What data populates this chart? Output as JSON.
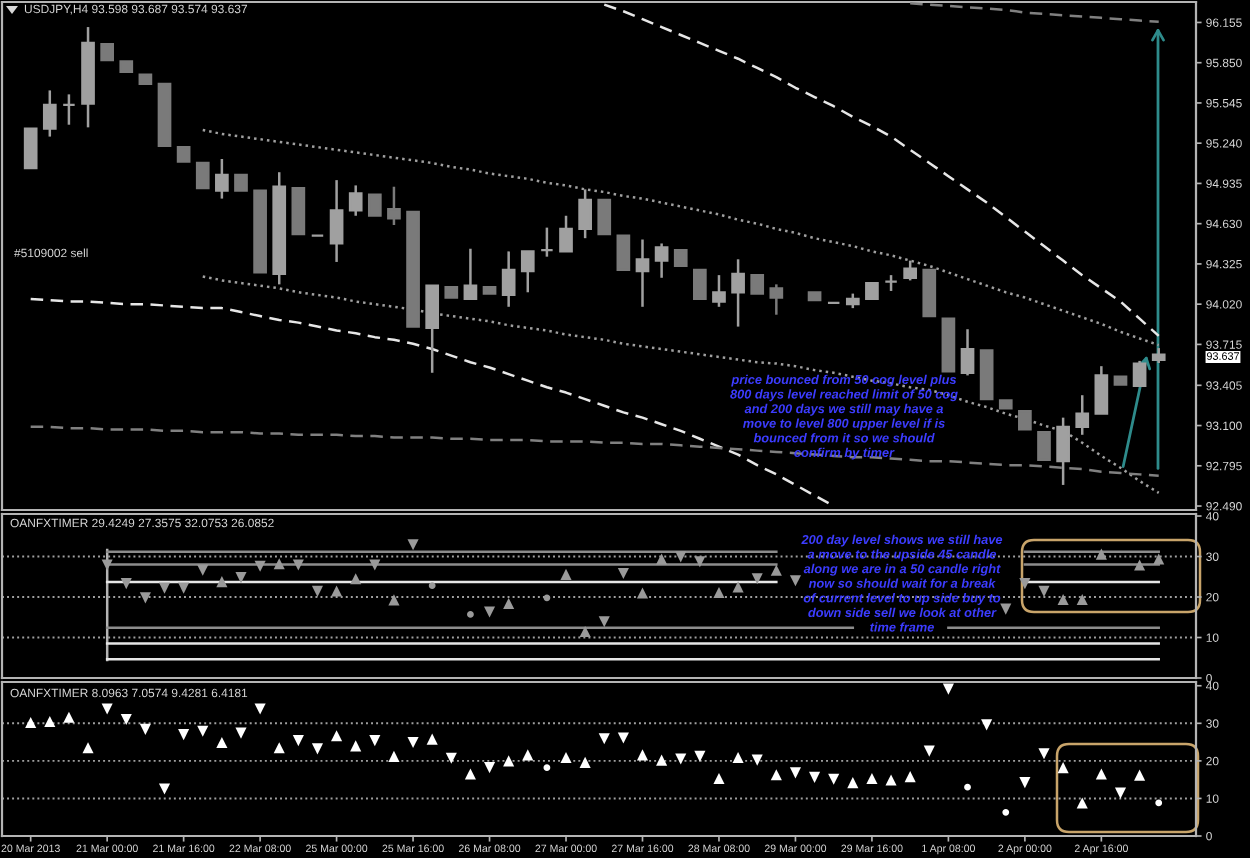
{
  "chart_data": [
    {
      "type": "candlestick",
      "title": "USDJPY,H4 93.598 93.687 93.574 93.637",
      "categories": [
        null,
        null,
        null,
        null,
        null,
        null,
        null,
        null,
        null,
        null,
        null,
        null,
        null,
        null,
        null,
        null,
        null,
        null,
        null,
        null,
        null,
        null,
        null,
        null,
        null,
        null,
        null,
        null,
        null,
        null,
        null,
        null,
        null,
        null,
        null,
        null,
        null,
        null,
        null,
        null,
        null,
        null,
        null,
        null,
        null,
        null,
        null,
        null,
        null,
        null,
        null,
        null,
        null,
        null,
        null,
        null,
        null,
        null,
        null,
        null
      ],
      "ohlc": [
        [
          95.05,
          95.35,
          95.05,
          95.35
        ],
        [
          95.35,
          95.64,
          95.29,
          95.53
        ],
        [
          95.53,
          95.61,
          95.38,
          95.53
        ],
        [
          95.54,
          96.12,
          95.36,
          96.0
        ],
        [
          95.99,
          95.99,
          95.87,
          95.87
        ],
        [
          95.86,
          95.86,
          95.78,
          95.78
        ],
        [
          95.76,
          95.76,
          95.69,
          95.69
        ],
        [
          95.69,
          95.69,
          95.22,
          95.22
        ],
        [
          95.21,
          95.21,
          95.1,
          95.1
        ],
        [
          95.09,
          95.09,
          94.9,
          94.9
        ],
        [
          94.88,
          95.12,
          94.82,
          95.0
        ],
        [
          95.0,
          95.0,
          94.88,
          94.88
        ],
        [
          94.88,
          94.88,
          94.26,
          94.26
        ],
        [
          94.25,
          95.02,
          94.17,
          94.91
        ],
        [
          94.9,
          94.9,
          94.55,
          94.55
        ],
        [
          94.54,
          94.54,
          94.54,
          94.54
        ],
        [
          94.48,
          94.96,
          94.34,
          94.73
        ],
        [
          94.73,
          94.92,
          94.69,
          94.86
        ],
        [
          94.85,
          94.85,
          94.69,
          94.69
        ],
        [
          94.74,
          94.91,
          94.62,
          94.67
        ],
        [
          94.72,
          94.72,
          93.85,
          93.85
        ],
        [
          93.84,
          94.16,
          93.5,
          94.16
        ],
        [
          94.15,
          94.15,
          94.07,
          94.07
        ],
        [
          94.06,
          94.44,
          94.06,
          94.16
        ],
        [
          94.15,
          94.15,
          94.1,
          94.1
        ],
        [
          94.09,
          94.42,
          94.0,
          94.28
        ],
        [
          94.27,
          94.42,
          94.11,
          94.42
        ],
        [
          94.43,
          94.6,
          94.38,
          94.43
        ],
        [
          94.42,
          94.69,
          94.42,
          94.59
        ],
        [
          94.59,
          94.89,
          94.52,
          94.81
        ],
        [
          94.81,
          94.81,
          94.55,
          94.55
        ],
        [
          94.54,
          94.54,
          94.28,
          94.28
        ],
        [
          94.27,
          94.51,
          94.0,
          94.36
        ],
        [
          94.35,
          94.48,
          94.22,
          94.45
        ],
        [
          94.43,
          94.43,
          94.31,
          94.31
        ],
        [
          94.28,
          94.28,
          94.06,
          94.06
        ],
        [
          94.04,
          94.24,
          94.0,
          94.11
        ],
        [
          94.11,
          94.36,
          93.85,
          94.25
        ],
        [
          94.24,
          94.24,
          94.1,
          94.1
        ],
        [
          94.14,
          94.17,
          93.94,
          94.07
        ],
        null,
        [
          94.11,
          94.11,
          94.05,
          94.05
        ],
        [
          94.03,
          94.03,
          94.03,
          94.03
        ],
        [
          94.02,
          94.1,
          93.99,
          94.06
        ],
        [
          94.06,
          94.18,
          94.06,
          94.18
        ],
        [
          94.19,
          94.24,
          94.12,
          94.19
        ],
        [
          94.22,
          94.35,
          94.2,
          94.29
        ],
        [
          94.28,
          94.28,
          93.93,
          93.93
        ],
        [
          93.91,
          93.91,
          93.51,
          93.51
        ],
        [
          93.5,
          93.83,
          93.48,
          93.68
        ],
        [
          93.67,
          93.67,
          93.3,
          93.3
        ],
        [
          93.29,
          93.29,
          93.23,
          93.23
        ],
        [
          93.21,
          93.21,
          93.07,
          93.07
        ],
        [
          93.05,
          93.05,
          92.84,
          92.84
        ],
        [
          92.83,
          93.16,
          92.65,
          93.09
        ],
        [
          93.09,
          93.33,
          93.03,
          93.19
        ],
        [
          93.19,
          93.55,
          93.19,
          93.48
        ],
        [
          93.47,
          93.47,
          93.41,
          93.41
        ],
        [
          93.4,
          93.59,
          93.4,
          93.57
        ],
        [
          93.598,
          93.687,
          93.574,
          93.637
        ]
      ],
      "colors": [
        "#a0a0a0",
        "#a0a0a0",
        "#a0a0a0",
        "#a0a0a0",
        "#7a7a7a",
        "#7a7a7a",
        "#7a7a7a",
        "#7a7a7a",
        "#7a7a7a",
        "#7a7a7a",
        "#a0a0a0",
        "#7a7a7a",
        "#7a7a7a",
        "#a0a0a0",
        "#7a7a7a",
        "#a0a0a0",
        "#a0a0a0",
        "#a0a0a0",
        "#7a7a7a",
        "#7a7a7a",
        "#7a7a7a",
        "#a0a0a0",
        "#7a7a7a",
        "#a0a0a0",
        "#7a7a7a",
        "#a0a0a0",
        "#a0a0a0",
        "#a0a0a0",
        "#a0a0a0",
        "#a0a0a0",
        "#7a7a7a",
        "#7a7a7a",
        "#a0a0a0",
        "#a0a0a0",
        "#7a7a7a",
        "#7a7a7a",
        "#a0a0a0",
        "#a0a0a0",
        "#7a7a7a",
        "#7a7a7a",
        null,
        "#7a7a7a",
        "#a0a0a0",
        "#a0a0a0",
        "#a0a0a0",
        "#a0a0a0",
        "#a0a0a0",
        "#7a7a7a",
        "#7a7a7a",
        "#a0a0a0",
        "#7a7a7a",
        "#7a7a7a",
        "#7a7a7a",
        "#7a7a7a",
        "#a0a0a0",
        "#a0a0a0",
        "#a0a0a0",
        "#7a7a7a",
        "#a0a0a0",
        "#a0a0a0"
      ],
      "series": [
        {
          "type": "line",
          "color": "#a0a0a0",
          "line_style": "dotted",
          "values": [
            null,
            null,
            null,
            null,
            null,
            null,
            null,
            null,
            null,
            95.34,
            95.31,
            95.29,
            95.27,
            95.25,
            95.23,
            95.21,
            95.19,
            95.17,
            95.15,
            95.13,
            95.11,
            95.09,
            95.06,
            95.04,
            95.01,
            94.99,
            94.97,
            94.94,
            94.92,
            94.89,
            94.87,
            94.84,
            94.82,
            94.79,
            94.76,
            94.73,
            94.7,
            94.66,
            94.63,
            94.59,
            94.56,
            94.52,
            94.49,
            94.46,
            94.42,
            94.39,
            94.35,
            94.31,
            94.26,
            94.21,
            94.16,
            94.11,
            94.07,
            94.02,
            93.97,
            93.92,
            93.87,
            93.81,
            93.76,
            93.71
          ]
        },
        {
          "type": "line",
          "color": "#a0a0a0",
          "line_style": "dotted",
          "values": [
            null,
            null,
            null,
            null,
            null,
            null,
            null,
            null,
            null,
            94.23,
            94.2,
            94.18,
            94.16,
            94.14,
            94.11,
            94.09,
            94.07,
            94.04,
            94.02,
            94.0,
            93.98,
            93.95,
            93.93,
            93.91,
            93.89,
            93.86,
            93.84,
            93.82,
            93.79,
            93.77,
            93.75,
            93.72,
            93.7,
            93.68,
            93.66,
            93.64,
            93.62,
            93.6,
            93.58,
            93.57,
            93.55,
            93.52,
            93.5,
            93.47,
            93.44,
            93.42,
            93.39,
            93.37,
            93.33,
            93.28,
            93.24,
            93.19,
            93.15,
            93.1,
            93.06,
            92.97,
            92.87,
            92.78,
            92.68,
            92.59
          ]
        },
        {
          "type": "line",
          "color": "#e6e6e6",
          "line_style": "dashed",
          "values": [
            null,
            null,
            null,
            null,
            null,
            null,
            null,
            null,
            null,
            null,
            null,
            null,
            null,
            null,
            null,
            null,
            null,
            null,
            null,
            null,
            null,
            null,
            null,
            null,
            null,
            null,
            null,
            null,
            null,
            null,
            96.29,
            96.24,
            96.18,
            96.12,
            96.06,
            96.0,
            95.94,
            95.88,
            95.81,
            95.74,
            95.66,
            95.59,
            95.52,
            95.44,
            95.37,
            95.29,
            95.19,
            95.09,
            94.99,
            94.89,
            94.79,
            94.68,
            94.57,
            94.46,
            94.35,
            94.24,
            94.14,
            94.04,
            93.91,
            93.78
          ]
        },
        {
          "type": "line",
          "color": "#e6e6e6",
          "line_style": "dashed",
          "values": [
            94.06,
            94.05,
            94.04,
            94.04,
            94.03,
            94.02,
            94.02,
            94.01,
            94.0,
            93.99,
            93.99,
            93.96,
            93.93,
            93.9,
            93.88,
            93.85,
            93.82,
            93.8,
            93.77,
            93.75,
            93.72,
            93.68,
            93.63,
            93.58,
            93.54,
            93.49,
            93.44,
            93.39,
            93.35,
            93.3,
            93.25,
            93.2,
            93.16,
            93.11,
            93.06,
            93.0,
            92.94,
            92.88,
            92.8,
            92.73,
            92.65,
            92.57,
            92.49,
            null,
            null,
            null,
            null,
            null,
            null,
            null,
            null,
            null,
            null,
            null,
            null,
            null,
            null,
            null,
            null,
            null
          ]
        },
        {
          "type": "line",
          "color": "#808080",
          "line_style": "dashed",
          "values": [
            93.09,
            93.09,
            93.08,
            93.08,
            93.07,
            93.07,
            93.07,
            93.06,
            93.06,
            93.05,
            93.05,
            93.05,
            93.04,
            93.04,
            93.03,
            93.03,
            93.03,
            93.02,
            93.02,
            93.01,
            93.01,
            93.01,
            93.0,
            93.0,
            92.99,
            92.99,
            92.99,
            92.98,
            92.98,
            92.98,
            92.97,
            92.97,
            92.96,
            92.96,
            92.95,
            92.94,
            92.93,
            92.92,
            92.91,
            92.9,
            92.89,
            92.88,
            92.87,
            92.86,
            92.86,
            92.85,
            92.84,
            92.83,
            92.83,
            92.82,
            92.81,
            92.8,
            92.8,
            92.79,
            92.78,
            92.77,
            92.75,
            92.74,
            92.73,
            92.72
          ]
        },
        {
          "type": "line",
          "color": "#808080",
          "line_style": "dashed",
          "values": [
            null,
            null,
            null,
            null,
            null,
            null,
            null,
            null,
            null,
            null,
            null,
            null,
            null,
            null,
            null,
            null,
            null,
            null,
            null,
            null,
            null,
            null,
            null,
            null,
            null,
            null,
            null,
            null,
            null,
            null,
            null,
            null,
            null,
            null,
            null,
            null,
            null,
            null,
            null,
            null,
            null,
            null,
            null,
            null,
            null,
            null,
            96.3,
            96.29,
            96.28,
            96.27,
            96.26,
            96.25,
            96.23,
            96.22,
            96.21,
            96.2,
            96.19,
            96.18,
            96.17,
            96.16
          ]
        }
      ],
      "ylim": [
        92.46,
        96.31
      ],
      "yticks": [
        96.155,
        {
          "value": 95.85,
          "label": "95.850"
        },
        95.545,
        {
          "value": 95.24,
          "label": "95.240"
        },
        94.935,
        {
          "value": 94.63,
          "label": "94.630"
        },
        94.325,
        {
          "value": 94.02,
          "label": "94.020"
        },
        93.715,
        93.405,
        {
          "value": 93.1,
          "label": "93.100"
        },
        92.795,
        {
          "value": 92.49,
          "label": "92.490"
        }
      ],
      "tick_labels": "y",
      "annotations": [
        "#5109002 sell",
        "price bounced from 50 cog level plus",
        "800 days level reached limit of 50 cog",
        "and 200 days we still may have a",
        "move to level 800 upper level if is",
        "bounced from it so we should",
        "confirm by timer",
        "93.637"
      ]
    },
    {
      "type": "scatter",
      "title": "OANFXTIMER 29.4249 27.3575 32.0753 26.0852",
      "categories": [
        null,
        null,
        null,
        null,
        null,
        null,
        null,
        null,
        null,
        null,
        null,
        null,
        null,
        null,
        null,
        null,
        null,
        null,
        null,
        null,
        null,
        null,
        null,
        null,
        null,
        null,
        null,
        null,
        null,
        null,
        null,
        null,
        null,
        null,
        null,
        null,
        null,
        null,
        null,
        null,
        null,
        null,
        null,
        null,
        null,
        null,
        null,
        null,
        null,
        null,
        null,
        null,
        null,
        null,
        null,
        null,
        null,
        null,
        null,
        null
      ],
      "series": [
        {
          "type": "line",
          "color": "#8c8c8c",
          "values": [
            null,
            null,
            null,
            null,
            31.2,
            31.2,
            31.2,
            31.2,
            31.2,
            31.2,
            31.2,
            31.2,
            31.2,
            31.2,
            31.2,
            31.2,
            31.2,
            31.2,
            31.2,
            31.2,
            31.2,
            31.2,
            31.2,
            31.2,
            31.2,
            31.2,
            31.2,
            31.2,
            31.2,
            31.2,
            31.2,
            31.2,
            31.2,
            31.2,
            31.2,
            31.2,
            31.2,
            31.2,
            31.2,
            31.2,
            null,
            null,
            null,
            null,
            null,
            null,
            null,
            null,
            null,
            null,
            null,
            null,
            31.2,
            31.2,
            31.2,
            31.2,
            31.2,
            31.2,
            31.2,
            31.2
          ]
        },
        {
          "type": "line",
          "color": "#8c8c8c",
          "values": [
            null,
            null,
            null,
            null,
            28,
            28,
            28,
            28,
            28,
            28,
            28,
            28,
            28,
            28,
            28,
            28,
            28,
            28,
            28,
            28,
            28,
            28,
            28,
            28,
            28,
            28,
            28,
            28,
            28,
            28,
            28,
            28,
            28,
            28,
            28,
            28,
            28,
            28,
            28,
            28,
            null,
            null,
            null,
            null,
            null,
            null,
            null,
            null,
            null,
            null,
            null,
            null,
            28,
            28,
            28,
            28,
            28,
            28,
            28,
            28
          ]
        },
        {
          "type": "line",
          "color": "#e6e6e6",
          "values": [
            null,
            null,
            null,
            null,
            23.7,
            23.7,
            23.7,
            23.7,
            23.7,
            23.7,
            23.7,
            23.7,
            23.7,
            23.7,
            23.7,
            23.7,
            23.7,
            23.7,
            23.7,
            23.7,
            23.7,
            23.7,
            23.7,
            23.7,
            23.7,
            23.7,
            23.7,
            23.7,
            23.7,
            23.7,
            23.7,
            23.7,
            23.7,
            23.7,
            23.7,
            23.7,
            23.7,
            23.7,
            23.7,
            23.7,
            null,
            null,
            null,
            null,
            null,
            null,
            null,
            null,
            null,
            null,
            null,
            null,
            23.7,
            23.7,
            23.7,
            23.7,
            23.7,
            23.7,
            23.7,
            23.7
          ]
        },
        {
          "type": "line",
          "color": "#8c8c8c",
          "values": [
            null,
            null,
            null,
            null,
            12.4,
            12.4,
            12.4,
            12.4,
            12.4,
            12.4,
            12.4,
            12.4,
            12.4,
            12.4,
            12.4,
            12.4,
            12.4,
            12.4,
            12.4,
            12.4,
            12.4,
            12.4,
            12.4,
            12.4,
            12.4,
            12.4,
            12.4,
            12.4,
            12.4,
            12.4,
            12.4,
            12.4,
            12.4,
            12.4,
            12.4,
            12.4,
            12.4,
            12.4,
            12.4,
            12.4,
            12.4,
            12.4,
            12.4,
            12.4,
            null,
            null,
            null,
            null,
            12.4,
            12.4,
            12.4,
            12.4,
            12.4,
            12.4,
            12.4,
            12.4,
            12.4,
            12.4,
            12.4,
            12.4
          ]
        },
        {
          "type": "line",
          "color": "#e6e6e6",
          "values": [
            null,
            null,
            null,
            null,
            8.5,
            8.5,
            8.5,
            8.5,
            8.5,
            8.5,
            8.5,
            8.5,
            8.5,
            8.5,
            8.5,
            8.5,
            8.5,
            8.5,
            8.5,
            8.5,
            8.5,
            8.5,
            8.5,
            8.5,
            8.5,
            8.5,
            8.5,
            8.5,
            8.5,
            8.5,
            8.5,
            8.5,
            8.5,
            8.5,
            8.5,
            8.5,
            8.5,
            8.5,
            8.5,
            8.5,
            8.5,
            8.5,
            8.5,
            8.5,
            8.5,
            8.5,
            8.5,
            8.5,
            8.5,
            8.5,
            8.5,
            8.5,
            8.5,
            8.5,
            8.5,
            8.5,
            8.5,
            8.5,
            8.5,
            8.5
          ]
        },
        {
          "type": "line",
          "color": "#e6e6e6",
          "values": [
            null,
            null,
            null,
            null,
            4.6,
            4.6,
            4.6,
            4.6,
            4.6,
            4.6,
            4.6,
            4.6,
            4.6,
            4.6,
            4.6,
            4.6,
            4.6,
            4.6,
            4.6,
            4.6,
            4.6,
            4.6,
            4.6,
            4.6,
            4.6,
            4.6,
            4.6,
            4.6,
            4.6,
            4.6,
            4.6,
            4.6,
            4.6,
            4.6,
            4.6,
            4.6,
            4.6,
            4.6,
            4.6,
            4.6,
            4.6,
            4.6,
            4.6,
            4.6,
            4.6,
            4.6,
            4.6,
            4.6,
            4.6,
            4.6,
            4.6,
            4.6,
            4.6,
            4.6,
            4.6,
            4.6,
            4.6,
            4.6,
            4.6,
            4.6
          ]
        },
        {
          "color": "#9a9a9a",
          "marker": "triangle",
          "values": [
            null,
            null,
            null,
            null,
            null,
            null,
            null,
            null,
            null,
            null,
            23.8,
            null,
            null,
            28.2,
            null,
            null,
            21.5,
            24.5,
            null,
            19.3,
            null,
            null,
            null,
            null,
            null,
            18.4,
            null,
            null,
            25.6,
            11.5,
            null,
            null,
            21,
            29.4,
            null,
            null,
            21.1,
            22.5,
            null,
            26.6,
            null,
            null,
            null,
            null,
            null,
            null,
            null,
            null,
            null,
            null,
            null,
            null,
            null,
            null,
            19.4,
            19.4,
            30.6,
            null,
            27.9,
            29.4
          ]
        },
        {
          "color": "#9a9a9a",
          "marker": "triangle",
          "values": [
            null,
            null,
            null,
            null,
            27.9,
            23.3,
            19.8,
            22.2,
            22.2,
            26.6,
            null,
            24.8,
            27.6,
            null,
            27.9,
            21.4,
            null,
            null,
            27.9,
            null,
            32.9,
            null,
            null,
            null,
            16.3,
            null,
            null,
            null,
            null,
            null,
            13.9,
            25.8,
            null,
            null,
            29.9,
            28.7,
            null,
            null,
            24.5,
            null,
            24,
            null,
            null,
            null,
            null,
            null,
            null,
            null,
            null,
            null,
            null,
            17,
            23.3,
            21.4,
            null,
            null,
            null,
            null,
            null,
            null
          ]
        },
        {
          "color": "#9a9a9a",
          "marker": "circle",
          "values": [
            null,
            null,
            null,
            null,
            null,
            null,
            null,
            null,
            null,
            null,
            null,
            null,
            null,
            null,
            null,
            null,
            null,
            null,
            null,
            null,
            null,
            22.8,
            null,
            15.7,
            null,
            null,
            null,
            19.8,
            null,
            null,
            null,
            null,
            null,
            null,
            null,
            null,
            null,
            null,
            null,
            null,
            null,
            null,
            null,
            null,
            null,
            null,
            null,
            null,
            null,
            null,
            null,
            null,
            null,
            null,
            null,
            null,
            null,
            null,
            null,
            null
          ]
        }
      ],
      "ref_lines": [
        {
          "axis": "y",
          "value": 30,
          "color": "#a0a0a0",
          "line_style": "dotted"
        },
        {
          "axis": "y",
          "value": 20,
          "color": "#a0a0a0",
          "line_style": "dotted"
        },
        {
          "axis": "y",
          "value": 10,
          "color": "#a0a0a0",
          "line_style": "dotted"
        }
      ],
      "ylim": [
        0,
        40.5
      ],
      "yticks": [
        0,
        10,
        20,
        30,
        40
      ],
      "tick_labels": "y",
      "annotations": [
        "200 day level shows we still have",
        "a move to the upside 45 candle",
        "along we are in a 50 candle right",
        "now so should wait for a break",
        "of current level to up side buy to",
        "down side sell we look at other",
        "time frame"
      ]
    },
    {
      "type": "scatter",
      "title": "OANFXTIMER 8.0963 7.0574 9.4281 6.4181",
      "categories": [
        "20 Mar 2013",
        null,
        null,
        null,
        "21 Mar 00:00",
        null,
        null,
        null,
        "21 Mar 16:00",
        null,
        null,
        null,
        "22 Mar 08:00",
        null,
        null,
        null,
        "25 Mar 00:00",
        null,
        null,
        null,
        "25 Mar 16:00",
        null,
        null,
        null,
        "26 Mar 08:00",
        null,
        null,
        null,
        "27 Mar 00:00",
        null,
        null,
        null,
        "27 Mar 16:00",
        null,
        null,
        null,
        "28 Mar 08:00",
        null,
        null,
        null,
        "29 Mar 00:00",
        null,
        null,
        null,
        "29 Mar 16:00",
        null,
        null,
        null,
        "1 Apr 08:00",
        null,
        null,
        null,
        "2 Apr 00:00",
        null,
        null,
        null,
        "2 Apr 16:00",
        null,
        null,
        null
      ],
      "series": [
        {
          "color": "#ffffff",
          "marker": "triangle",
          "values": [
            30.2,
            30.5,
            31.6,
            23.5,
            null,
            null,
            null,
            null,
            null,
            null,
            24.9,
            null,
            null,
            23.5,
            null,
            null,
            26.7,
            24,
            null,
            21.2,
            null,
            25.8,
            null,
            16.5,
            null,
            20,
            21.6,
            null,
            20.9,
            19.6,
            null,
            null,
            21.6,
            20.2,
            null,
            null,
            15.3,
            20.9,
            null,
            16.3,
            null,
            null,
            null,
            14.2,
            15.3,
            14.9,
            15.8,
            null,
            null,
            null,
            null,
            null,
            null,
            null,
            18.2,
            8.8,
            16.5,
            null,
            16.2,
            null
          ]
        },
        {
          "color": "#ffffff",
          "marker": "triangle",
          "values": [
            null,
            null,
            null,
            null,
            33.8,
            31,
            28.4,
            12.5,
            27,
            27.9,
            null,
            27.4,
            33.8,
            null,
            25.4,
            23.2,
            null,
            null,
            25.4,
            null,
            24.9,
            null,
            20.7,
            null,
            18.2,
            null,
            null,
            null,
            null,
            null,
            25.9,
            26.1,
            null,
            null,
            20.5,
            21.2,
            null,
            null,
            20.2,
            null,
            16.8,
            15.6,
            15.1,
            null,
            null,
            null,
            null,
            22.6,
            39.1,
            null,
            29.6,
            null,
            14.2,
            21.9,
            null,
            null,
            null,
            11.4,
            null,
            null
          ]
        },
        {
          "color": "#ffffff",
          "marker": "circle",
          "values": [
            null,
            null,
            null,
            null,
            null,
            null,
            null,
            null,
            null,
            null,
            null,
            null,
            null,
            null,
            null,
            null,
            null,
            null,
            null,
            null,
            null,
            null,
            null,
            null,
            null,
            null,
            null,
            18.2,
            null,
            null,
            null,
            null,
            null,
            null,
            null,
            null,
            null,
            null,
            null,
            null,
            null,
            null,
            null,
            null,
            null,
            null,
            null,
            null,
            null,
            13,
            null,
            6.3,
            null,
            null,
            null,
            null,
            null,
            null,
            null,
            8.8
          ]
        }
      ],
      "ref_lines": [
        {
          "axis": "y",
          "value": 30,
          "color": "#a0a0a0",
          "line_style": "dotted"
        },
        {
          "axis": "y",
          "value": 20,
          "color": "#a0a0a0",
          "line_style": "dotted"
        },
        {
          "axis": "y",
          "value": 10,
          "color": "#a0a0a0",
          "line_style": "dotted"
        }
      ],
      "ylim": [
        0,
        41
      ],
      "yticks": [
        0,
        10,
        20,
        30,
        40
      ]
    }
  ]
}
